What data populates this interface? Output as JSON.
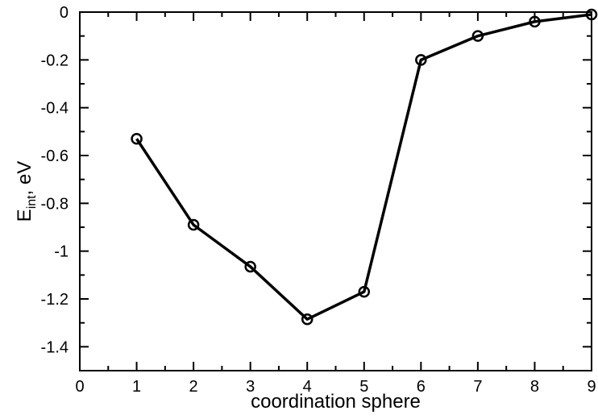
{
  "chart_data": {
    "type": "line",
    "title": "",
    "xlabel": "coordination sphere",
    "ylabel": {
      "main": "E",
      "subscript": "int",
      "suffix": ", eV"
    },
    "xlim": [
      0,
      9
    ],
    "ylim": [
      -1.5,
      0
    ],
    "x_ticks": [
      {
        "value": 0,
        "label": "0"
      },
      {
        "value": 1,
        "label": "1"
      },
      {
        "value": 2,
        "label": "2"
      },
      {
        "value": 3,
        "label": "3"
      },
      {
        "value": 4,
        "label": "4"
      },
      {
        "value": 5,
        "label": "5"
      },
      {
        "value": 6,
        "label": "6"
      },
      {
        "value": 7,
        "label": "7"
      },
      {
        "value": 8,
        "label": "8"
      },
      {
        "value": 9,
        "label": "9"
      }
    ],
    "y_ticks": [
      {
        "value": 0,
        "label": "0"
      },
      {
        "value": -0.2,
        "label": "-0.2"
      },
      {
        "value": -0.4,
        "label": "-0.4"
      },
      {
        "value": -0.6,
        "label": "-0.6"
      },
      {
        "value": -0.8,
        "label": "-0.8"
      },
      {
        "value": -1.0,
        "label": "-1"
      },
      {
        "value": -1.2,
        "label": "-1.2"
      },
      {
        "value": -1.4,
        "label": "-1.4"
      }
    ],
    "x_minor_step": 0.5,
    "y_minor_step": 0.1,
    "grid": false,
    "series": [
      {
        "color": "#000000",
        "marker": "open-circle",
        "x": [
          1,
          2,
          3,
          4,
          5,
          6,
          7,
          8,
          9
        ],
        "y": [
          -0.53,
          -0.89,
          -1.065,
          -1.285,
          -1.17,
          -0.2,
          -0.1,
          -0.04,
          -0.01
        ]
      }
    ]
  }
}
